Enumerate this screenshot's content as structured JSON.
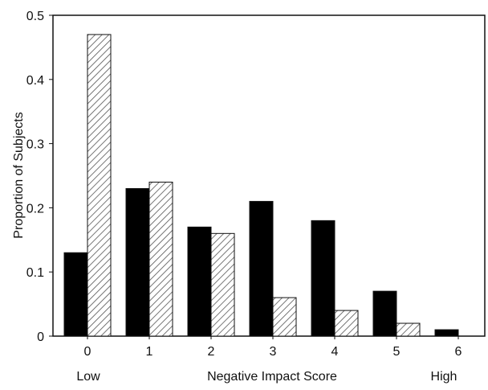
{
  "chart_data": {
    "type": "bar",
    "categories": [
      "0",
      "1",
      "2",
      "3",
      "4",
      "5",
      "6"
    ],
    "series": [
      {
        "values": [
          0.13,
          0.23,
          0.17,
          0.21,
          0.18,
          0.07,
          0.01
        ],
        "fill": "solid",
        "color": "#000000"
      },
      {
        "values": [
          0.47,
          0.24,
          0.16,
          0.06,
          0.04,
          0.02,
          0.0
        ],
        "fill": "diagonal-hatch",
        "color": "#555555"
      }
    ],
    "xlabel": "Negative Impact Score",
    "xlabel_low": "Low",
    "xlabel_high": "High",
    "ylabel": "Proportion of Subjects",
    "yticks": [
      "0",
      "0.1",
      "0.2",
      "0.3",
      "0.4",
      "0.5"
    ],
    "ylim": [
      0,
      0.5
    ],
    "grid": false,
    "legend": false
  }
}
